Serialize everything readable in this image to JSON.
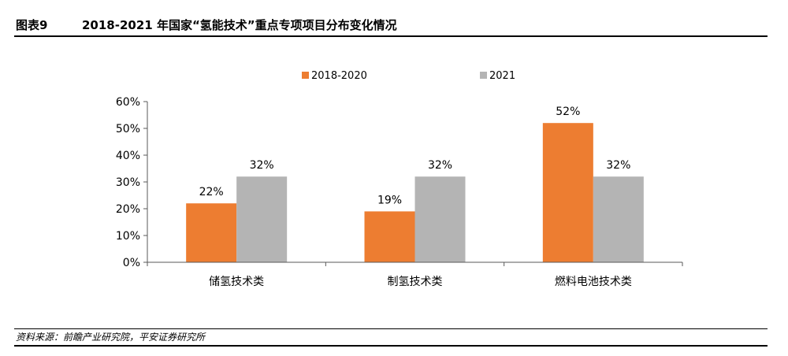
{
  "figure": {
    "label": "图表9",
    "title": "2018-2021 年国家“氢能技术”重点专项项目分布变化情况"
  },
  "source": "资料来源：前瞻产业研究院，平安证券研究所",
  "colors": {
    "series_2018_2020": "#ED7D31",
    "series_2021": "#B4B4B4",
    "axis": "#595959",
    "text": "#000000"
  },
  "chart_data": {
    "type": "bar",
    "categories": [
      "储氢技术类",
      "制氢技术类",
      "燃料电池技术类"
    ],
    "series": [
      {
        "name": "2018-2020",
        "values": [
          22,
          19,
          52
        ],
        "labels": [
          "22%",
          "19%",
          "52%"
        ]
      },
      {
        "name": "2021",
        "values": [
          32,
          32,
          32
        ],
        "labels": [
          "32%",
          "32%",
          "32%"
        ]
      }
    ],
    "ylim": [
      0,
      60
    ],
    "yticks": [
      0,
      10,
      20,
      30,
      40,
      50,
      60
    ],
    "ytick_labels": [
      "0%",
      "10%",
      "20%",
      "30%",
      "40%",
      "50%",
      "60%"
    ],
    "legend_position": "top-center",
    "grid": false
  }
}
